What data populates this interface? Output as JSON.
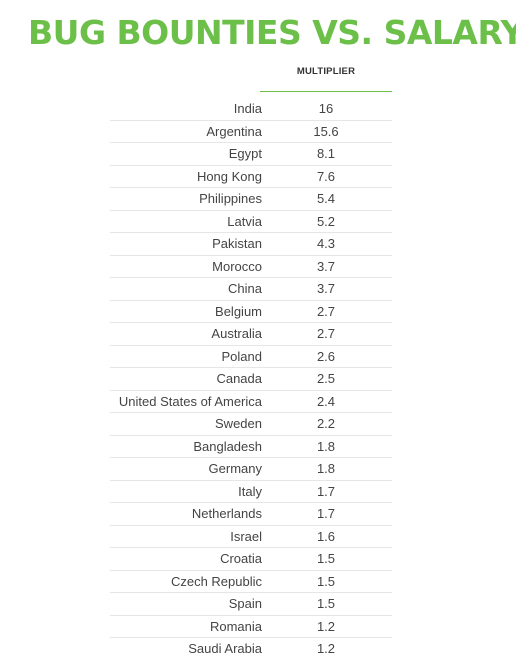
{
  "header": {
    "title": "BUG BOUNTIES VS. SALARY"
  },
  "colors": {
    "accent": "#6cc04a",
    "text": "#444444",
    "divider": "#e6e6e6"
  },
  "chart_data": {
    "type": "table",
    "title": "BUG BOUNTIES VS. SALARY",
    "columns": [
      "",
      "MULTIPLIER"
    ],
    "rows": [
      {
        "country": "India",
        "multiplier": "16"
      },
      {
        "country": "Argentina",
        "multiplier": "15.6"
      },
      {
        "country": "Egypt",
        "multiplier": "8.1"
      },
      {
        "country": "Hong Kong",
        "multiplier": "7.6"
      },
      {
        "country": "Philippines",
        "multiplier": "5.4"
      },
      {
        "country": "Latvia",
        "multiplier": "5.2"
      },
      {
        "country": "Pakistan",
        "multiplier": "4.3"
      },
      {
        "country": "Morocco",
        "multiplier": "3.7"
      },
      {
        "country": "China",
        "multiplier": "3.7"
      },
      {
        "country": "Belgium",
        "multiplier": "2.7"
      },
      {
        "country": "Australia",
        "multiplier": "2.7"
      },
      {
        "country": "Poland",
        "multiplier": "2.6"
      },
      {
        "country": "Canada",
        "multiplier": "2.5"
      },
      {
        "country": "United States of America",
        "multiplier": "2.4"
      },
      {
        "country": "Sweden",
        "multiplier": "2.2"
      },
      {
        "country": "Bangladesh",
        "multiplier": "1.8"
      },
      {
        "country": "Germany",
        "multiplier": "1.8"
      },
      {
        "country": "Italy",
        "multiplier": "1.7"
      },
      {
        "country": "Netherlands",
        "multiplier": "1.7"
      },
      {
        "country": "Israel",
        "multiplier": "1.6"
      },
      {
        "country": "Croatia",
        "multiplier": "1.5"
      },
      {
        "country": "Czech Republic",
        "multiplier": "1.5"
      },
      {
        "country": "Spain",
        "multiplier": "1.5"
      },
      {
        "country": "Romania",
        "multiplier": "1.2"
      },
      {
        "country": "Saudi Arabia",
        "multiplier": "1.2"
      }
    ]
  }
}
